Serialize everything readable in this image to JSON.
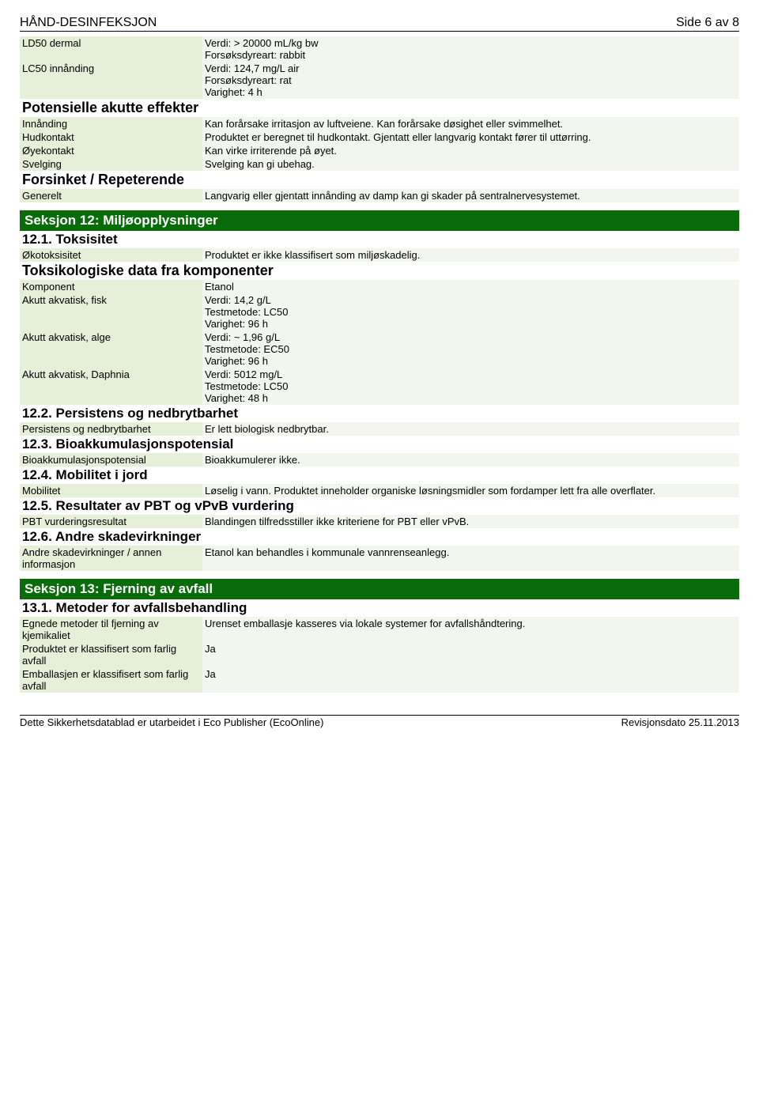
{
  "header": {
    "title": "HÅND-DESINFEKSJON",
    "page": "Side 6 av 8"
  },
  "toxrows": [
    {
      "label": "LD50 dermal",
      "value": "Verdi: > 20000 mL/kg bw\nForsøksdyreart: rabbit"
    },
    {
      "label": "LC50 innånding",
      "value": "Verdi: 124,7 mg/L air\nForsøksdyreart: rat\nVarighet: 4 h"
    }
  ],
  "subhead1": "Potensielle akutte effekter",
  "acute": [
    {
      "label": "Innånding",
      "value": "Kan forårsake irritasjon av luftveiene. Kan forårsake døsighet eller svimmelhet."
    },
    {
      "label": "Hudkontakt",
      "value": "Produktet er beregnet til hudkontakt. Gjentatt eller langvarig kontakt fører til uttørring."
    },
    {
      "label": "Øyekontakt",
      "value": "Kan virke irriterende på øyet."
    },
    {
      "label": "Svelging",
      "value": "Svelging kan gi ubehag."
    }
  ],
  "subhead2": "Forsinket / Repeterende",
  "delayed": [
    {
      "label": "Generelt",
      "value": "Langvarig eller gjentatt innånding av damp kan gi skader på sentralnervesystemet."
    }
  ],
  "section12": {
    "title": "Seksjon 12: Miljøopplysninger",
    "s121": "12.1. Toksisitet",
    "eco": [
      {
        "label": "Økotoksisitet",
        "value": "Produktet er ikke klassifisert som miljøskadelig."
      }
    ],
    "compHead": "Toksikologiske data fra komponenter",
    "comp": [
      {
        "label": "Komponent",
        "value": "Etanol"
      },
      {
        "label": "Akutt akvatisk, fisk",
        "value": "Verdi: 14,2 g/L\nTestmetode: LC50\nVarighet: 96 h"
      },
      {
        "label": "Akutt akvatisk, alge",
        "value": "Verdi: ~ 1,96 g/L\nTestmetode: EC50\nVarighet: 96 h"
      },
      {
        "label": "Akutt akvatisk, Daphnia",
        "value": "Verdi: 5012 mg/L\nTestmetode: LC50\nVarighet: 48 h"
      }
    ],
    "s122": "12.2. Persistens og nedbrytbarhet",
    "pers": [
      {
        "label": "Persistens og nedbrytbarhet",
        "value": "Er lett biologisk nedbrytbar."
      }
    ],
    "s123": "12.3. Bioakkumulasjonspotensial",
    "bio": [
      {
        "label": "Bioakkumulasjonspotensial",
        "value": "Bioakkumulerer ikke."
      }
    ],
    "s124": "12.4. Mobilitet i jord",
    "mob": [
      {
        "label": "Mobilitet",
        "value": "Løselig i vann. Produktet inneholder organiske løsningsmidler som fordamper lett fra alle overflater."
      }
    ],
    "s125": "12.5. Resultater av PBT og vPvB vurdering",
    "pbt": [
      {
        "label": "PBT vurderingsresultat",
        "value": "Blandingen tilfredsstiller ikke kriteriene for PBT eller vPvB."
      }
    ],
    "s126": "12.6. Andre skadevirkninger",
    "other": [
      {
        "label": "Andre skadevirkninger / annen informasjon",
        "value": "Etanol kan behandles i kommunale vannrenseanlegg."
      }
    ]
  },
  "section13": {
    "title": "Seksjon 13: Fjerning av avfall",
    "s131": "13.1. Metoder for avfallsbehandling",
    "rows": [
      {
        "label": "Egnede metoder til fjerning av kjemikaliet",
        "value": "Urenset emballasje kasseres via lokale systemer for avfallshåndtering."
      },
      {
        "label": "Produktet er klassifisert som farlig avfall",
        "value": "Ja"
      },
      {
        "label": "Emballasjen er klassifisert som farlig avfall",
        "value": "Ja"
      }
    ]
  },
  "footer": {
    "left": "Dette Sikkerhetsdatablad er utarbeidet i Eco Publisher (EcoOnline)",
    "right": "Revisjonsdato 25.11.2013"
  }
}
